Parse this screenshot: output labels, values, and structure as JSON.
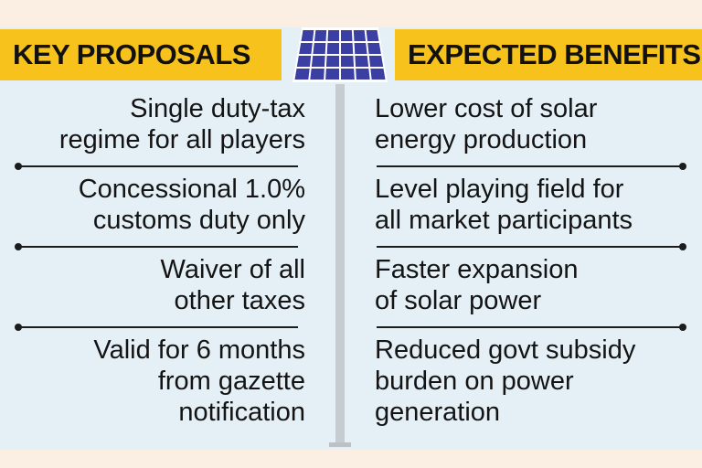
{
  "headers": {
    "left": "KEY PROPOSALS",
    "right": "EXPECTED BENEFITS"
  },
  "proposals": [
    [
      "Single duty-tax",
      "regime for all players"
    ],
    [
      "Concessional 1.0%",
      "customs duty only"
    ],
    [
      "Waiver of all",
      "other taxes"
    ],
    [
      "Valid for 6 months",
      "from gazette",
      "notification"
    ]
  ],
  "benefits": [
    [
      "Lower cost of solar",
      "energy production"
    ],
    [
      "Level playing field for",
      "all market participants"
    ],
    [
      "Faster expansion",
      "of solar power"
    ],
    [
      "Reduced govt subsidy",
      "burden on power",
      "generation"
    ]
  ],
  "colors": {
    "header": "#f6c21b",
    "panel_bg": "#e4eff6",
    "page_bg": "#fbeee3",
    "solar_cell": "#3b3fa3"
  },
  "icon": "solar-panel-icon"
}
